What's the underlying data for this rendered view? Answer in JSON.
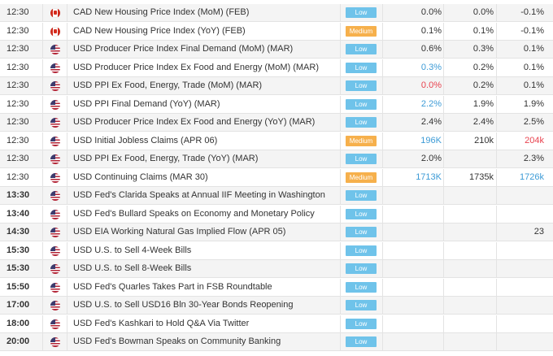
{
  "colors": {
    "impact_low": "#6fc3ea",
    "impact_medium": "#f6b04c",
    "value_better": "#3d9bd6",
    "value_worse": "#e8434f"
  },
  "rows": [
    {
      "time": "12:30",
      "flag": "canada-flag-icon",
      "event": "CAD New Housing Price Index (MoM) (FEB)",
      "impact": "Low",
      "actual": "0.0%",
      "forecast": "0.0%",
      "previous": "-0.1%"
    },
    {
      "time": "12:30",
      "flag": "canada-flag-icon",
      "event": "CAD New Housing Price Index (YoY) (FEB)",
      "impact": "Medium",
      "actual": "0.1%",
      "forecast": "0.1%",
      "previous": "-0.1%"
    },
    {
      "time": "12:30",
      "flag": "usa-flag-icon",
      "event": "USD Producer Price Index Final Demand (MoM) (MAR)",
      "impact": "Low",
      "actual": "0.6%",
      "forecast": "0.3%",
      "previous": "0.1%"
    },
    {
      "time": "12:30",
      "flag": "usa-flag-icon",
      "event": "USD Producer Price Index Ex Food and Energy (MoM) (MAR)",
      "impact": "Low",
      "actual": "0.3%",
      "actual_color": "blue",
      "forecast": "0.2%",
      "previous": "0.1%"
    },
    {
      "time": "12:30",
      "flag": "usa-flag-icon",
      "event": "USD PPI Ex Food, Energy, Trade (MoM) (MAR)",
      "impact": "Low",
      "actual": "0.0%",
      "actual_color": "red",
      "forecast": "0.2%",
      "previous": "0.1%"
    },
    {
      "time": "12:30",
      "flag": "usa-flag-icon",
      "event": "USD PPI Final Demand (YoY) (MAR)",
      "impact": "Low",
      "actual": "2.2%",
      "actual_color": "blue",
      "forecast": "1.9%",
      "previous": "1.9%"
    },
    {
      "time": "12:30",
      "flag": "usa-flag-icon",
      "event": "USD Producer Price Index Ex Food and Energy (YoY) (MAR)",
      "impact": "Low",
      "actual": "2.4%",
      "forecast": "2.4%",
      "previous": "2.5%"
    },
    {
      "time": "12:30",
      "flag": "usa-flag-icon",
      "event": "USD Initial Jobless Claims (APR 06)",
      "impact": "Medium",
      "actual": "196K",
      "actual_color": "blue",
      "forecast": "210k",
      "previous": "204k",
      "previous_color": "red"
    },
    {
      "time": "12:30",
      "flag": "usa-flag-icon",
      "event": "USD PPI Ex Food, Energy, Trade (YoY) (MAR)",
      "impact": "Low",
      "actual": "2.0%",
      "forecast": "",
      "previous": "2.3%"
    },
    {
      "time": "12:30",
      "flag": "usa-flag-icon",
      "event": "USD Continuing Claims (MAR 30)",
      "impact": "Medium",
      "actual": "1713K",
      "actual_color": "blue",
      "forecast": "1735k",
      "previous": "1726k",
      "previous_color": "blue"
    },
    {
      "time": "13:30",
      "bold": true,
      "flag": "usa-flag-icon",
      "event": "USD Fed's Clarida Speaks at Annual IIF Meeting in Washington",
      "impact": "Low",
      "actual": "",
      "forecast": "",
      "previous": ""
    },
    {
      "time": "13:40",
      "bold": true,
      "flag": "usa-flag-icon",
      "event": "USD Fed's Bullard Speaks on Economy and Monetary Policy",
      "impact": "Low",
      "actual": "",
      "forecast": "",
      "previous": ""
    },
    {
      "time": "14:30",
      "bold": true,
      "flag": "usa-flag-icon",
      "event": "USD EIA Working Natural Gas Implied Flow (APR 05)",
      "impact": "Low",
      "actual": "",
      "forecast": "",
      "previous": "23"
    },
    {
      "time": "15:30",
      "bold": true,
      "flag": "usa-flag-icon",
      "event": "USD U.S. to Sell 4-Week Bills",
      "impact": "Low",
      "actual": "",
      "forecast": "",
      "previous": ""
    },
    {
      "time": "15:30",
      "bold": true,
      "flag": "usa-flag-icon",
      "event": "USD U.S. to Sell 8-Week Bills",
      "impact": "Low",
      "actual": "",
      "forecast": "",
      "previous": ""
    },
    {
      "time": "15:50",
      "bold": true,
      "flag": "usa-flag-icon",
      "event": "USD Fed's Quarles Takes Part in FSB Roundtable",
      "impact": "Low",
      "actual": "",
      "forecast": "",
      "previous": ""
    },
    {
      "time": "17:00",
      "bold": true,
      "flag": "usa-flag-icon",
      "event": "USD U.S. to Sell USD16 Bln 30-Year Bonds Reopening",
      "impact": "Low",
      "actual": "",
      "forecast": "",
      "previous": ""
    },
    {
      "time": "18:00",
      "bold": true,
      "flag": "usa-flag-icon",
      "event": "USD Fed's Kashkari to Hold Q&A Via Twitter",
      "impact": "Low",
      "actual": "",
      "forecast": "",
      "previous": ""
    },
    {
      "time": "20:00",
      "bold": true,
      "flag": "usa-flag-icon",
      "event": "USD Fed's Bowman Speaks on Community Banking",
      "impact": "Low",
      "actual": "",
      "forecast": "",
      "previous": ""
    }
  ]
}
